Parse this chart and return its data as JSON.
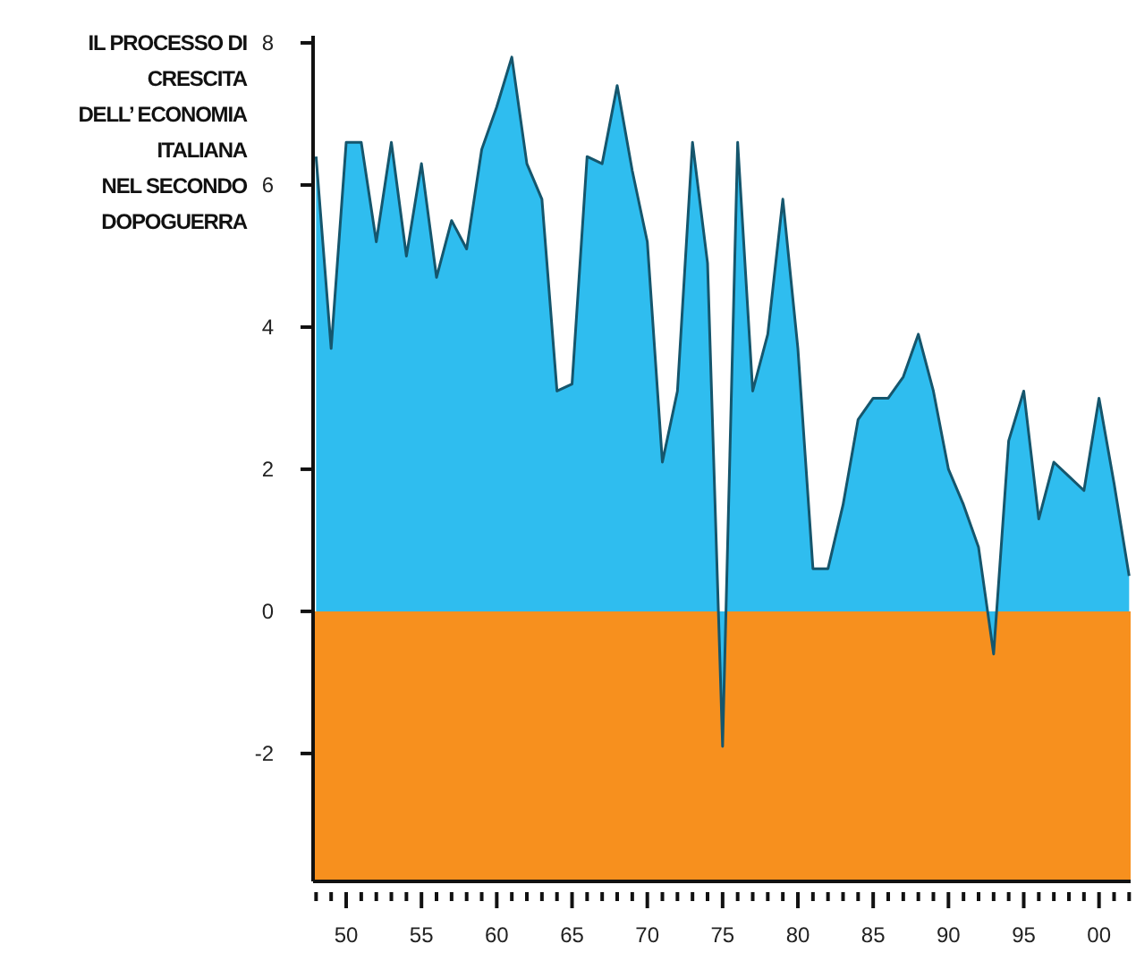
{
  "chart_data": {
    "type": "area",
    "title": "IL PROCESSO DI\nCRESCITA\nDELL’ ECONOMIA\nITALIANA\nNEL SECONDO\nDOPOGUERRA",
    "x": [
      1948,
      1949,
      1950,
      1951,
      1952,
      1953,
      1954,
      1955,
      1956,
      1957,
      1958,
      1959,
      1960,
      1961,
      1962,
      1963,
      1964,
      1965,
      1966,
      1967,
      1968,
      1969,
      1970,
      1971,
      1972,
      1973,
      1974,
      1975,
      1976,
      1977,
      1978,
      1979,
      1980,
      1981,
      1982,
      1983,
      1984,
      1985,
      1986,
      1987,
      1988,
      1989,
      1990,
      1991,
      1992,
      1993,
      1994,
      1995,
      1996,
      1997,
      1998,
      1999,
      2000,
      2001,
      2002
    ],
    "series": [
      {
        "color": "#2fbdef",
        "values": [
          6.4,
          3.7,
          6.6,
          6.6,
          5.2,
          6.6,
          5.0,
          6.3,
          4.7,
          5.5,
          5.1,
          6.5,
          7.1,
          7.8,
          6.3,
          5.8,
          3.1,
          3.2,
          6.4,
          6.3,
          7.4,
          6.2,
          5.2,
          2.1,
          3.1,
          6.6,
          4.9,
          -1.9,
          6.6,
          3.1,
          3.9,
          5.8,
          3.7,
          0.6,
          0.6,
          1.5,
          2.7,
          3.0,
          3.0,
          3.3,
          3.9,
          3.1,
          2.0,
          1.5,
          0.9,
          -0.6,
          2.4,
          3.1,
          1.3,
          2.1,
          1.9,
          1.7,
          3.0,
          1.8,
          0.5
        ]
      }
    ],
    "xlim": [
      1947.8,
      2002.1
    ],
    "xticks": [
      {
        "value": 1948,
        "label": null
      },
      {
        "value": 1949,
        "label": null
      },
      {
        "value": 1950,
        "label": "50"
      },
      {
        "value": 1951,
        "label": null
      },
      {
        "value": 1952,
        "label": null
      },
      {
        "value": 1953,
        "label": null
      },
      {
        "value": 1954,
        "label": null
      },
      {
        "value": 1955,
        "label": "55"
      },
      {
        "value": 1956,
        "label": null
      },
      {
        "value": 1957,
        "label": null
      },
      {
        "value": 1958,
        "label": null
      },
      {
        "value": 1959,
        "label": null
      },
      {
        "value": 1960,
        "label": "60"
      },
      {
        "value": 1961,
        "label": null
      },
      {
        "value": 1962,
        "label": null
      },
      {
        "value": 1963,
        "label": null
      },
      {
        "value": 1964,
        "label": null
      },
      {
        "value": 1965,
        "label": "65"
      },
      {
        "value": 1966,
        "label": null
      },
      {
        "value": 1967,
        "label": null
      },
      {
        "value": 1968,
        "label": null
      },
      {
        "value": 1969,
        "label": null
      },
      {
        "value": 1970,
        "label": "70"
      },
      {
        "value": 1971,
        "label": null
      },
      {
        "value": 1972,
        "label": null
      },
      {
        "value": 1973,
        "label": null
      },
      {
        "value": 1974,
        "label": null
      },
      {
        "value": 1975,
        "label": "75"
      },
      {
        "value": 1976,
        "label": null
      },
      {
        "value": 1977,
        "label": null
      },
      {
        "value": 1978,
        "label": null
      },
      {
        "value": 1979,
        "label": null
      },
      {
        "value": 1980,
        "label": "80"
      },
      {
        "value": 1981,
        "label": null
      },
      {
        "value": 1982,
        "label": null
      },
      {
        "value": 1983,
        "label": null
      },
      {
        "value": 1984,
        "label": null
      },
      {
        "value": 1985,
        "label": "85"
      },
      {
        "value": 1986,
        "label": null
      },
      {
        "value": 1987,
        "label": null
      },
      {
        "value": 1988,
        "label": null
      },
      {
        "value": 1989,
        "label": null
      },
      {
        "value": 1990,
        "label": "90"
      },
      {
        "value": 1991,
        "label": null
      },
      {
        "value": 1992,
        "label": null
      },
      {
        "value": 1993,
        "label": null
      },
      {
        "value": 1994,
        "label": null
      },
      {
        "value": 1995,
        "label": "95"
      },
      {
        "value": 1996,
        "label": null
      },
      {
        "value": 1997,
        "label": null
      },
      {
        "value": 1998,
        "label": null
      },
      {
        "value": 1999,
        "label": null
      },
      {
        "value": 2000,
        "label": "00"
      },
      {
        "value": 2001,
        "label": null
      },
      {
        "value": 2002,
        "label": null
      }
    ],
    "ylim": [
      -3.8,
      8.1
    ],
    "yticks": [
      -2,
      0,
      2,
      4,
      6,
      8
    ],
    "bands": [
      {
        "axis": "y",
        "from": -3.8,
        "to": 0,
        "color": "#f7901e"
      }
    ],
    "grid": false
  }
}
